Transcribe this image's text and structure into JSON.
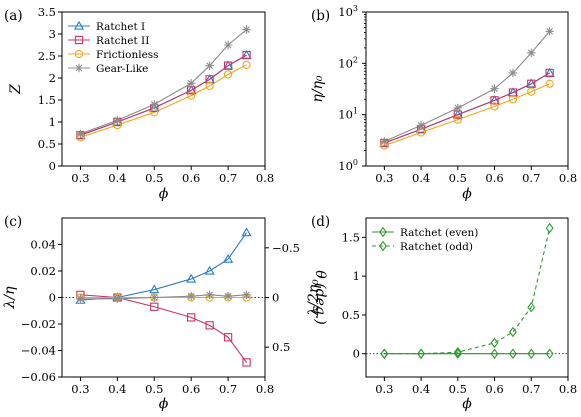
{
  "colors": {
    "ratchet_i": "#2a7ec9",
    "ratchet_ii": "#cc3366",
    "frictionless": "#f2a81d",
    "gear_like": "#8c8c8c",
    "green": "#2e9a2e",
    "frame": "#000000"
  },
  "chart_data": [
    {
      "id": "a",
      "panel_label": "(a)",
      "type": "line",
      "xlabel": "ϕ",
      "ylabel": "Z",
      "xlim": [
        0.25,
        0.8
      ],
      "ylim": [
        0,
        3.5
      ],
      "xticks": [
        0.3,
        0.4,
        0.5,
        0.6,
        0.7,
        0.8
      ],
      "xtick_labels": [
        "0.3",
        "0.4",
        "0.5",
        "0.6",
        "0.7",
        "0.8"
      ],
      "yticks": [
        0,
        0.5,
        1,
        1.5,
        2,
        2.5,
        3,
        3.5
      ],
      "ytick_labels": [
        "0",
        "0.5",
        "1",
        "1.5",
        "2",
        "2.5",
        "3",
        "3.5"
      ],
      "legend": "top-left",
      "x": [
        0.3,
        0.4,
        0.5,
        0.6,
        0.65,
        0.7,
        0.75
      ],
      "series": [
        {
          "name": "Ratchet I",
          "marker": "triangle",
          "color": "ratchet_i",
          "values": [
            0.7,
            1.0,
            1.32,
            1.72,
            1.97,
            2.28,
            2.52
          ]
        },
        {
          "name": "Ratchet II",
          "marker": "square",
          "color": "ratchet_ii",
          "values": [
            0.7,
            1.0,
            1.32,
            1.72,
            1.97,
            2.28,
            2.52
          ]
        },
        {
          "name": "Frictionless",
          "marker": "circle",
          "color": "frictionless",
          "values": [
            0.65,
            0.93,
            1.22,
            1.6,
            1.82,
            2.08,
            2.3
          ]
        },
        {
          "name": "Gear-Like",
          "marker": "star",
          "color": "gear_like",
          "values": [
            0.73,
            1.04,
            1.4,
            1.88,
            2.28,
            2.75,
            3.1
          ]
        }
      ]
    },
    {
      "id": "b",
      "panel_label": "(b)",
      "type": "line",
      "xlabel": "ϕ",
      "ylabel": "η/η₀",
      "yscale": "log",
      "xlim": [
        0.25,
        0.8
      ],
      "ylim": [
        1,
        1000
      ],
      "xticks": [
        0.3,
        0.4,
        0.5,
        0.6,
        0.7,
        0.8
      ],
      "xtick_labels": [
        "0.3",
        "0.4",
        "0.5",
        "0.6",
        "0.7",
        "0.8"
      ],
      "yticks": [
        1,
        10,
        100,
        1000
      ],
      "ytick_labels": [
        "10",
        "10",
        "10",
        "10"
      ],
      "ytick_exponents": [
        "0",
        "1",
        "2",
        "3"
      ],
      "x": [
        0.3,
        0.4,
        0.5,
        0.6,
        0.65,
        0.7,
        0.75
      ],
      "series": [
        {
          "name": "Ratchet I",
          "marker": "triangle",
          "color": "ratchet_i",
          "values": [
            2.8,
            5.2,
            10,
            19,
            27,
            40,
            65
          ]
        },
        {
          "name": "Ratchet II",
          "marker": "square",
          "color": "ratchet_ii",
          "values": [
            2.8,
            5.2,
            10,
            19,
            27,
            40,
            65
          ]
        },
        {
          "name": "Frictionless",
          "marker": "circle",
          "color": "frictionless",
          "values": [
            2.5,
            4.5,
            8,
            14.5,
            20,
            28,
            40
          ]
        },
        {
          "name": "Gear-Like",
          "marker": "star",
          "color": "gear_like",
          "values": [
            3,
            6.2,
            13.5,
            32,
            65,
            160,
            420
          ]
        }
      ]
    },
    {
      "id": "c",
      "panel_label": "(c)",
      "type": "line",
      "xlabel": "ϕ",
      "ylabel": "λ/η",
      "ylabel_right": "θ (deg.)",
      "xlim": [
        0.25,
        0.8
      ],
      "ylim": [
        -0.06,
        0.06
      ],
      "xticks": [
        0.3,
        0.4,
        0.5,
        0.6,
        0.7,
        0.8
      ],
      "xtick_labels": [
        "0.3",
        "0.4",
        "0.5",
        "0.6",
        "0.7",
        "0.8"
      ],
      "yticks": [
        -0.06,
        -0.04,
        -0.02,
        0,
        0.02,
        0.04
      ],
      "ytick_labels": [
        "−0.06",
        "−0.04",
        "−0.02",
        "0",
        "0.02",
        "0.04"
      ],
      "ylim_right": [
        0.8,
        -0.8
      ],
      "yticks_right": [
        -0.5,
        0,
        0.5
      ],
      "ytick_labels_right": [
        "−0.5",
        "0",
        "0.5"
      ],
      "zero_line": true,
      "x": [
        0.3,
        0.4,
        0.5,
        0.6,
        0.65,
        0.7,
        0.75
      ],
      "series": [
        {
          "name": "Ratchet I",
          "marker": "triangle",
          "color": "ratchet_i",
          "values": [
            -0.002,
            0.0,
            0.006,
            0.014,
            0.02,
            0.029,
            0.049
          ]
        },
        {
          "name": "Ratchet II",
          "marker": "square",
          "color": "ratchet_ii",
          "values": [
            0.002,
            0.0,
            -0.007,
            -0.015,
            -0.021,
            -0.03,
            -0.049
          ]
        },
        {
          "name": "Frictionless",
          "marker": "circle",
          "color": "frictionless",
          "values": [
            0.0,
            0.0,
            0.0,
            0.0,
            0.0,
            0.0,
            0.0
          ]
        },
        {
          "name": "Gear-Like",
          "marker": "star",
          "color": "gear_like",
          "values": [
            -0.001,
            -0.001,
            0.0,
            0.001,
            0.002,
            0.001,
            0.002
          ]
        }
      ]
    },
    {
      "id": "d",
      "panel_label": "(d)",
      "type": "line",
      "xlabel": "ϕ",
      "ylabel": "λ/2η₀",
      "xlim": [
        0.25,
        0.8
      ],
      "ylim": [
        -0.3,
        1.75
      ],
      "xticks": [
        0.3,
        0.4,
        0.5,
        0.6,
        0.7,
        0.8
      ],
      "xtick_labels": [
        "0.3",
        "0.4",
        "0.5",
        "0.6",
        "0.7",
        "0.8"
      ],
      "yticks": [
        0,
        0.5,
        1,
        1.5
      ],
      "ytick_labels": [
        "0",
        "0.5",
        "1",
        "1.5"
      ],
      "legend": "top-left",
      "zero_line": true,
      "x": [
        0.3,
        0.4,
        0.5,
        0.6,
        0.65,
        0.7,
        0.75
      ],
      "series": [
        {
          "name": "Ratchet (even)",
          "marker": "diamond",
          "color": "green",
          "dashed": false,
          "values": [
            0.0,
            0.0,
            0.0,
            0.0,
            0.0,
            0.0,
            0.0
          ]
        },
        {
          "name": "Ratchet (odd)",
          "marker": "diamond",
          "color": "green",
          "dashed": true,
          "values": [
            0.0,
            0.0,
            0.02,
            0.14,
            0.28,
            0.6,
            1.62
          ]
        }
      ]
    }
  ]
}
